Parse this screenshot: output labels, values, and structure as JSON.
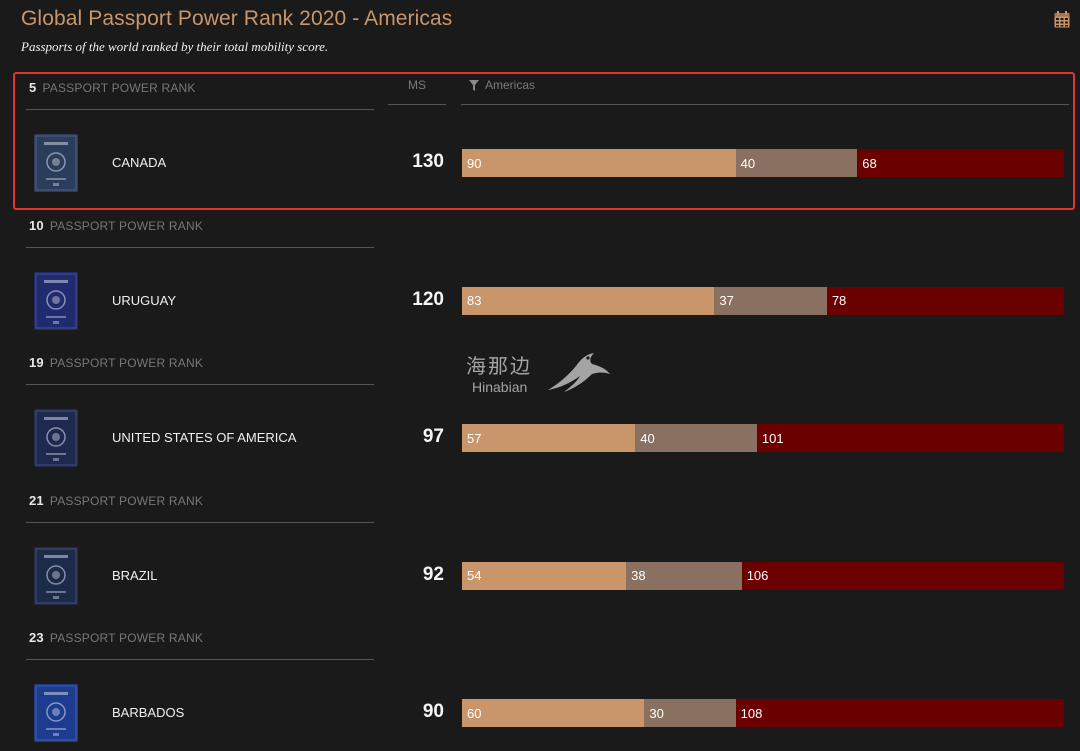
{
  "header": {
    "title": "Global Passport Power Rank 2020 - Americas",
    "subtitle": "Passports of the world ranked by their total mobility score."
  },
  "columns": {
    "ms_label": "MS",
    "filter_label": "Americas"
  },
  "rank_suffix": "PASSPORT POWER RANK",
  "watermark": {
    "cn": "海那边",
    "en": "Hinabian"
  },
  "colors": {
    "title": "#c9956a",
    "segment_a": "#c9956a",
    "segment_b": "#8a7060",
    "segment_c": "#6b0000",
    "highlight": "#e0352b"
  },
  "rows": [
    {
      "rank": "5",
      "country": "CANADA",
      "ms": "130",
      "segments": [
        "90",
        "40",
        "68"
      ],
      "passport_color": "#2b3d5c",
      "highlighted": true
    },
    {
      "rank": "10",
      "country": "URUGUAY",
      "ms": "120",
      "segments": [
        "83",
        "37",
        "78"
      ],
      "passport_color": "#1f2b6e"
    },
    {
      "rank": "19",
      "country": "UNITED STATES OF AMERICA",
      "ms": "97",
      "segments": [
        "57",
        "40",
        "101"
      ],
      "passport_color": "#1e2950"
    },
    {
      "rank": "21",
      "country": "BRAZIL",
      "ms": "92",
      "segments": [
        "54",
        "38",
        "106"
      ],
      "passport_color": "#1c2b4a"
    },
    {
      "rank": "23",
      "country": "BARBADOS",
      "ms": "90",
      "segments": [
        "60",
        "30",
        "108"
      ],
      "passport_color": "#1d3c8f"
    }
  ]
}
